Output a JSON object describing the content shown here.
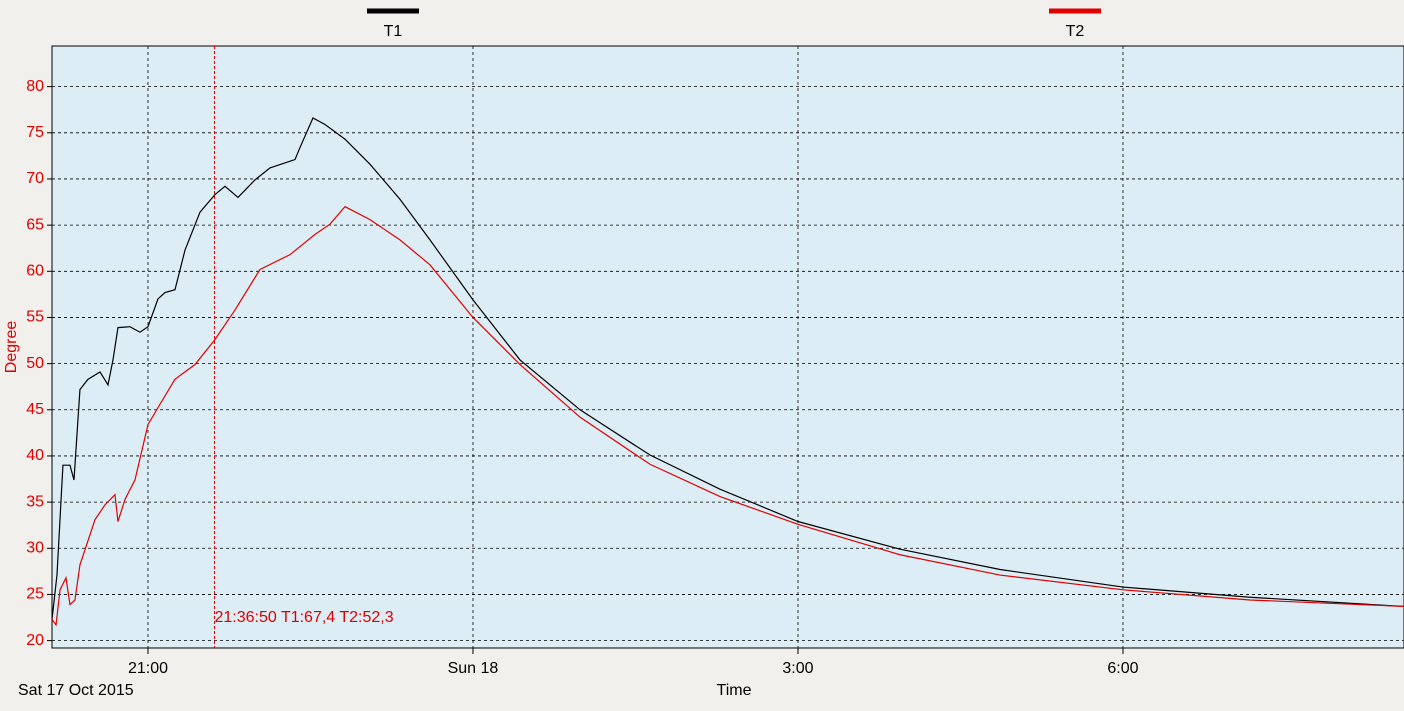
{
  "chart_data": {
    "type": "line",
    "y_label": "Degree",
    "x_label": "Time",
    "date_label": "Sat 17 Oct 2015",
    "xlim": [
      20.114,
      32.594
    ],
    "ylim": [
      19.2,
      84.4
    ],
    "xticks": [
      {
        "value": 21,
        "label": "21:00"
      },
      {
        "value": 24,
        "label": "Sun 18"
      },
      {
        "value": 27,
        "label": "3:00"
      },
      {
        "value": 30,
        "label": "6:00"
      }
    ],
    "yticks": [
      20,
      25,
      30,
      35,
      40,
      45,
      50,
      55,
      60,
      65,
      70,
      75,
      80
    ],
    "grid": true,
    "cursor": {
      "x": 21.614,
      "label": "21:36:50 T1:67,4 T2:52,3",
      "color": "#e00000"
    },
    "series": [
      {
        "name": "T1",
        "color": "#000000",
        "x": [
          20.114,
          20.16,
          20.215,
          20.28,
          20.317,
          20.372,
          20.446,
          20.557,
          20.631,
          20.677,
          20.723,
          20.834,
          20.926,
          21,
          21.092,
          21.157,
          21.249,
          21.342,
          21.48,
          21.618,
          21.711,
          21.831,
          21.988,
          22.126,
          22.357,
          22.403,
          22.523,
          22.634,
          22.819,
          23.049,
          23.326,
          23.603,
          24,
          24.434,
          24.988,
          25.634,
          26.28,
          27,
          27.942,
          28.865,
          30,
          31.173,
          32.594
        ],
        "values": [
          22.3,
          27.1,
          39,
          39,
          37.4,
          47.2,
          48.3,
          49.1,
          47.7,
          50.4,
          53.9,
          54,
          53.4,
          54,
          57,
          57.7,
          58,
          62.3,
          66.4,
          68.3,
          69.2,
          68,
          69.9,
          71.2,
          72.1,
          73.4,
          76.6,
          75.9,
          74.3,
          71.6,
          67.8,
          63.4,
          56.9,
          50.4,
          45,
          40.1,
          36.4,
          32.9,
          29.9,
          27.7,
          25.8,
          24.7,
          23.7
        ]
      },
      {
        "name": "T2",
        "color": "#e00000",
        "x": [
          20.114,
          20.151,
          20.188,
          20.243,
          20.28,
          20.326,
          20.372,
          20.511,
          20.603,
          20.695,
          20.723,
          20.788,
          20.88,
          21,
          21.111,
          21.249,
          21.434,
          21.618,
          21.803,
          22.034,
          22.311,
          22.542,
          22.68,
          22.819,
          23.049,
          23.326,
          23.603,
          24,
          24.434,
          24.988,
          25.634,
          26.28,
          27,
          27.942,
          28.865,
          30,
          31.173,
          32.594
        ],
        "values": [
          22.3,
          21.7,
          25.5,
          26.8,
          23.9,
          24.4,
          28.2,
          33.1,
          34.7,
          35.8,
          32.9,
          35.3,
          37.4,
          43.4,
          45.6,
          48.3,
          49.9,
          52.6,
          55.8,
          60.2,
          61.8,
          64,
          65.1,
          67,
          65.6,
          63.4,
          60.7,
          55,
          49.9,
          44.2,
          39.1,
          35.6,
          32.6,
          29.3,
          27.1,
          25.5,
          24.4,
          23.7
        ]
      }
    ]
  }
}
